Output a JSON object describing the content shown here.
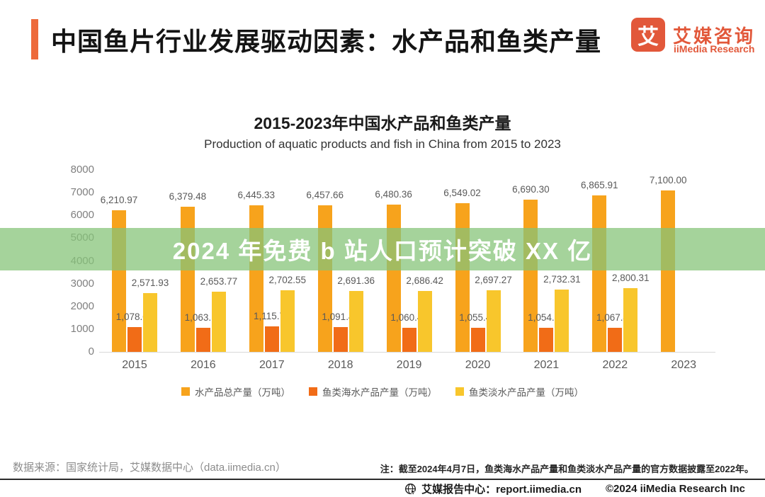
{
  "header": {
    "title": "中国鱼片行业发展驱动因素：水产品和鱼类产量",
    "logo": {
      "glyph": "艾",
      "name_cn": "艾媒咨询",
      "name_en": "iiMedia Research",
      "brand_color": "#E2583A"
    }
  },
  "banner": {
    "text": "2024 年免费 b 站人口预计突破 XX 亿",
    "background": "#85C378"
  },
  "chart_data": {
    "type": "bar",
    "title": "2015-2023年中国水产品和鱼类产量",
    "subtitle": "Production of aquatic products and fish in China from 2015 to 2023",
    "categories": [
      "2015",
      "2016",
      "2017",
      "2018",
      "2019",
      "2020",
      "2021",
      "2022",
      "2023"
    ],
    "series": [
      {
        "name": "水产品总产量（万吨）",
        "color": "#F7A31C",
        "values": [
          6210.97,
          6379.48,
          6445.33,
          6457.66,
          6480.36,
          6549.02,
          6690.3,
          6865.91,
          7100.0
        ],
        "labels": [
          "6,210.97",
          "6,379.48",
          "6,445.33",
          "6,457.66",
          "6,480.36",
          "6,549.02",
          "6,690.30",
          "6,865.91",
          "7,100.00"
        ]
      },
      {
        "name": "鱼类海水产品产量（万吨）",
        "color": "#F16C17",
        "values": [
          1078.02,
          1063.15,
          1115.78,
          1091.48,
          1060.48,
          1055.41,
          1054.18,
          1067.4,
          null
        ],
        "labels": [
          "1,078.02",
          "1,063.15",
          "1,115.78",
          "1,091.48",
          "1,060.48",
          "1,055.41",
          "1,054.18",
          "1,067.40",
          null
        ]
      },
      {
        "name": "鱼类淡水产品产量（万吨）",
        "color": "#F8C62C",
        "values": [
          2571.93,
          2653.77,
          2702.55,
          2691.36,
          2686.42,
          2697.27,
          2732.31,
          2800.31,
          null
        ],
        "labels": [
          "2,571.93",
          "2,653.77",
          "2,702.55",
          "2,691.36",
          "2,686.42",
          "2,697.27",
          "2,732.31",
          "2,800.31",
          null
        ]
      }
    ],
    "y_ticks": [
      0,
      1000,
      2000,
      3000,
      4000,
      5000,
      6000,
      7000,
      8000
    ],
    "ylim": [
      0,
      8000
    ],
    "xlabel": "",
    "ylabel": "",
    "grid": false,
    "legend_position": "bottom"
  },
  "footer": {
    "source": "数据来源：国家统计局，艾媒数据中心（data.iimedia.cn）",
    "note": "注：截至2024年4月7日，鱼类海水产品产量和鱼类淡水产品产量的官方数据披露至2022年。",
    "report_center": "艾媒报告中心：report.iimedia.cn",
    "copyright": "©2024  iiMedia Research Inc"
  }
}
